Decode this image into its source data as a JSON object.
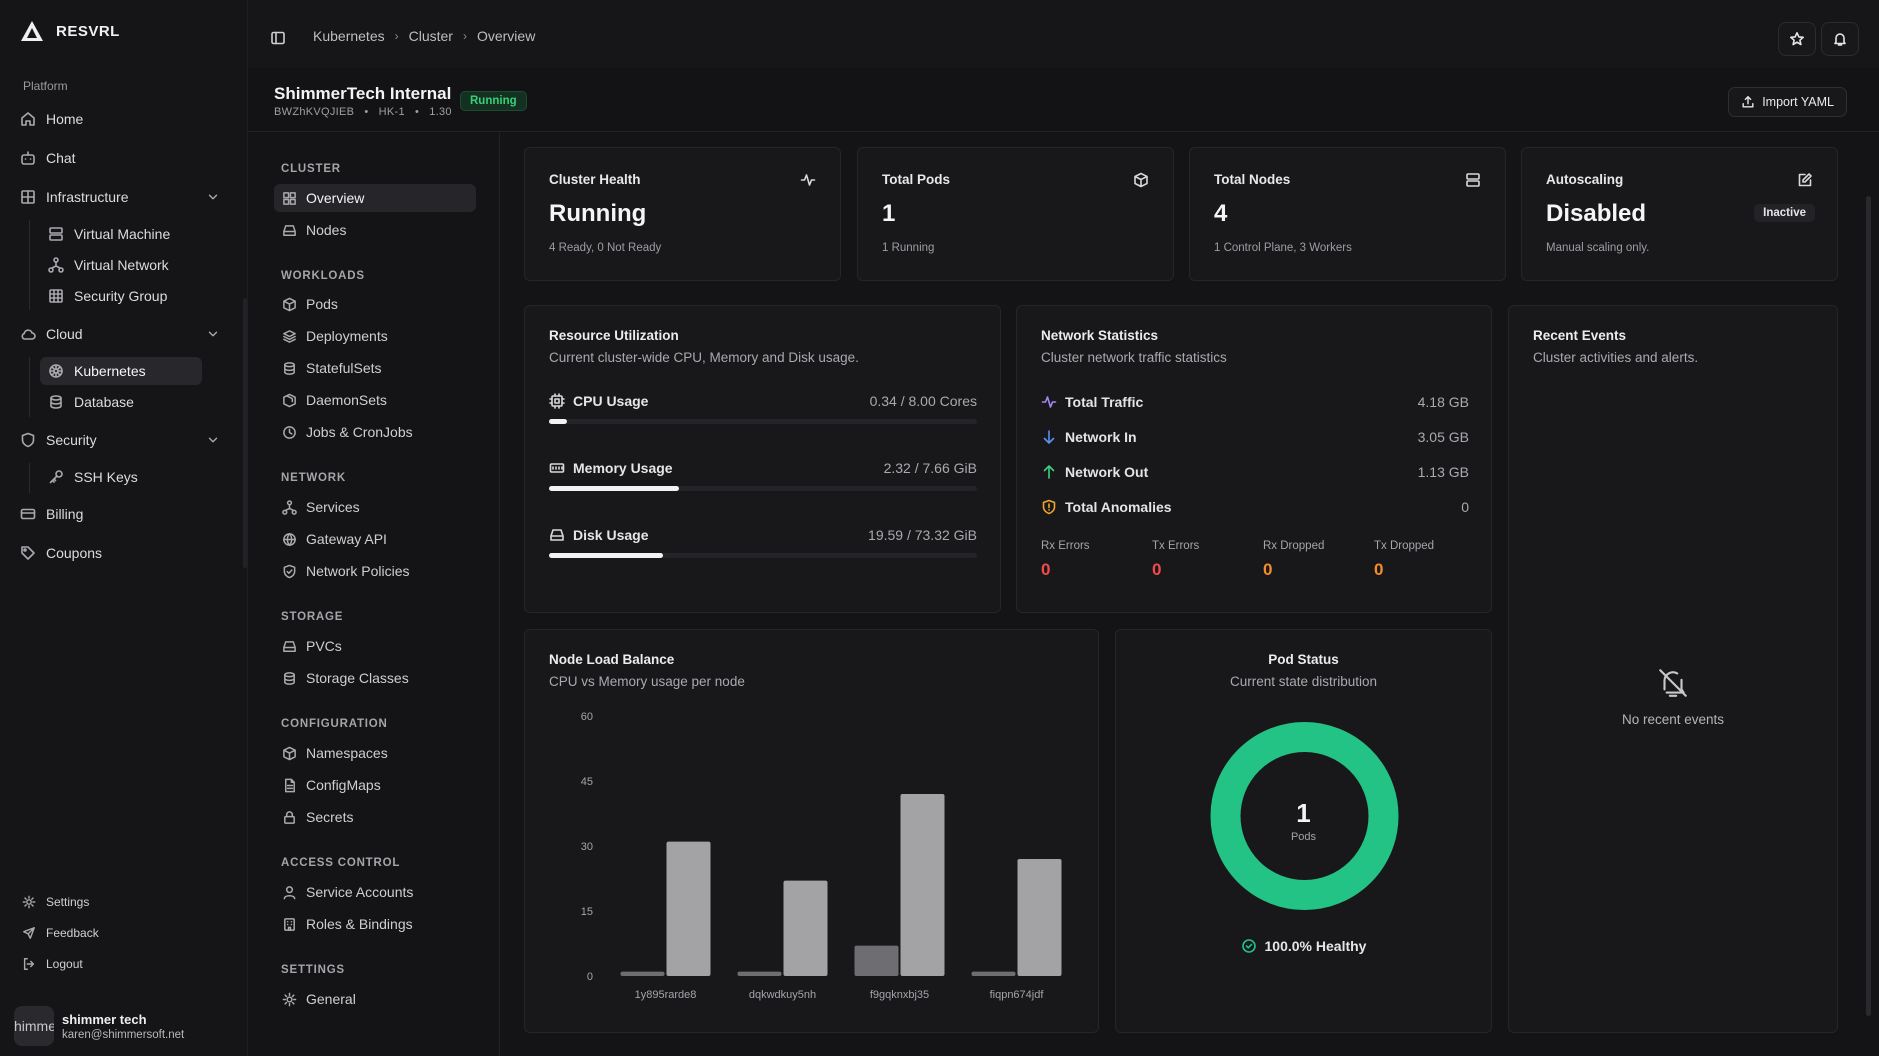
{
  "brand": {
    "name": "RESVRL"
  },
  "sidebar": {
    "platform_label": "Platform",
    "home": "Home",
    "chat": "Chat",
    "infrastructure": "Infrastructure",
    "infra_items": [
      "Virtual Machine",
      "Virtual Network",
      "Security Group"
    ],
    "cloud": "Cloud",
    "cloud_items": [
      "Kubernetes",
      "Database"
    ],
    "security": "Security",
    "security_items": [
      "SSH Keys"
    ],
    "billing": "Billing",
    "coupons": "Coupons",
    "footer": {
      "settings": "Settings",
      "feedback": "Feedback",
      "logout": "Logout"
    },
    "user": {
      "avatar_text": "himme",
      "name": "shimmer tech",
      "email": "karen@shimmersoft.net"
    }
  },
  "breadcrumb": [
    "Kubernetes",
    "Cluster",
    "Overview"
  ],
  "cluster": {
    "name": "ShimmerTech Internal",
    "id": "BWZhKVQJIEB",
    "region": "HK-1",
    "version": "1.30",
    "status": "Running",
    "import_label": "Import YAML"
  },
  "secnav": {
    "cluster_h": "CLUSTER",
    "cluster": [
      "Overview",
      "Nodes"
    ],
    "workloads_h": "WORKLOADS",
    "workloads": [
      "Pods",
      "Deployments",
      "StatefulSets",
      "DaemonSets",
      "Jobs & CronJobs"
    ],
    "network_h": "NETWORK",
    "network": [
      "Services",
      "Gateway API",
      "Network Policies"
    ],
    "storage_h": "STORAGE",
    "storage": [
      "PVCs",
      "Storage Classes"
    ],
    "config_h": "CONFIGURATION",
    "config": [
      "Namespaces",
      "ConfigMaps",
      "Secrets"
    ],
    "access_h": "ACCESS CONTROL",
    "access": [
      "Service Accounts",
      "Roles & Bindings"
    ],
    "settings_h": "SETTINGS",
    "settings": [
      "General"
    ]
  },
  "stats": {
    "health": {
      "title": "Cluster Health",
      "value": "Running",
      "sub": "4 Ready, 0 Not Ready"
    },
    "pods": {
      "title": "Total Pods",
      "value": "1",
      "sub": "1 Running"
    },
    "nodes": {
      "title": "Total Nodes",
      "value": "4",
      "sub": "1 Control Plane, 3 Workers"
    },
    "autoscaling": {
      "title": "Autoscaling",
      "value": "Disabled",
      "badge": "Inactive",
      "sub": "Manual scaling only."
    }
  },
  "resource": {
    "title": "Resource Utilization",
    "sub": "Current cluster-wide CPU, Memory and Disk usage.",
    "cpu": {
      "label": "CPU Usage",
      "value": "0.34 / 8.00 Cores",
      "fraction": 0.0425
    },
    "memory": {
      "label": "Memory Usage",
      "value": "2.32 / 7.66 GiB",
      "fraction": 0.303
    },
    "disk": {
      "label": "Disk Usage",
      "value": "19.59 / 73.32 GiB",
      "fraction": 0.267
    }
  },
  "network": {
    "title": "Network Statistics",
    "sub": "Cluster network traffic statistics",
    "total": {
      "label": "Total Traffic",
      "value": "4.18 GB"
    },
    "in": {
      "label": "Network In",
      "value": "3.05 GB"
    },
    "out": {
      "label": "Network Out",
      "value": "1.13 GB"
    },
    "anomalies": {
      "label": "Total Anomalies",
      "value": "0"
    },
    "rx_errors": {
      "label": "Rx Errors",
      "value": "0"
    },
    "tx_errors": {
      "label": "Tx Errors",
      "value": "0"
    },
    "rx_dropped": {
      "label": "Rx Dropped",
      "value": "0"
    },
    "tx_dropped": {
      "label": "Tx Dropped",
      "value": "0"
    }
  },
  "events": {
    "title": "Recent Events",
    "sub": "Cluster activities and alerts.",
    "empty": "No recent events"
  },
  "node_load": {
    "title": "Node Load Balance",
    "sub": "CPU vs Memory usage per node"
  },
  "pod_status": {
    "title": "Pod Status",
    "sub": "Current state distribution",
    "count": "1",
    "unit": "Pods",
    "healthy": "100.0% Healthy",
    "healthy_fraction": 1.0
  },
  "chart_data": {
    "type": "bar",
    "categories": [
      "1y895rarde8",
      "dqkwdkuy5nh",
      "f9gqknxbj35",
      "fiqpn674jdf"
    ],
    "series": [
      {
        "values": [
          1,
          1,
          7,
          1
        ]
      },
      {
        "values": [
          31,
          22,
          42,
          27
        ]
      }
    ],
    "yticks": [
      "0",
      "15",
      "30",
      "45",
      "60"
    ],
    "ylim": [
      0,
      60
    ],
    "colors": {
      "cpu": "#6e6e72",
      "memory": "#a3a3a6"
    }
  },
  "colors": {
    "accent_green": "#22c385",
    "error_red": "#ef4b4b",
    "warn_orange": "#f58b2a",
    "running_green": "#37d07a"
  }
}
